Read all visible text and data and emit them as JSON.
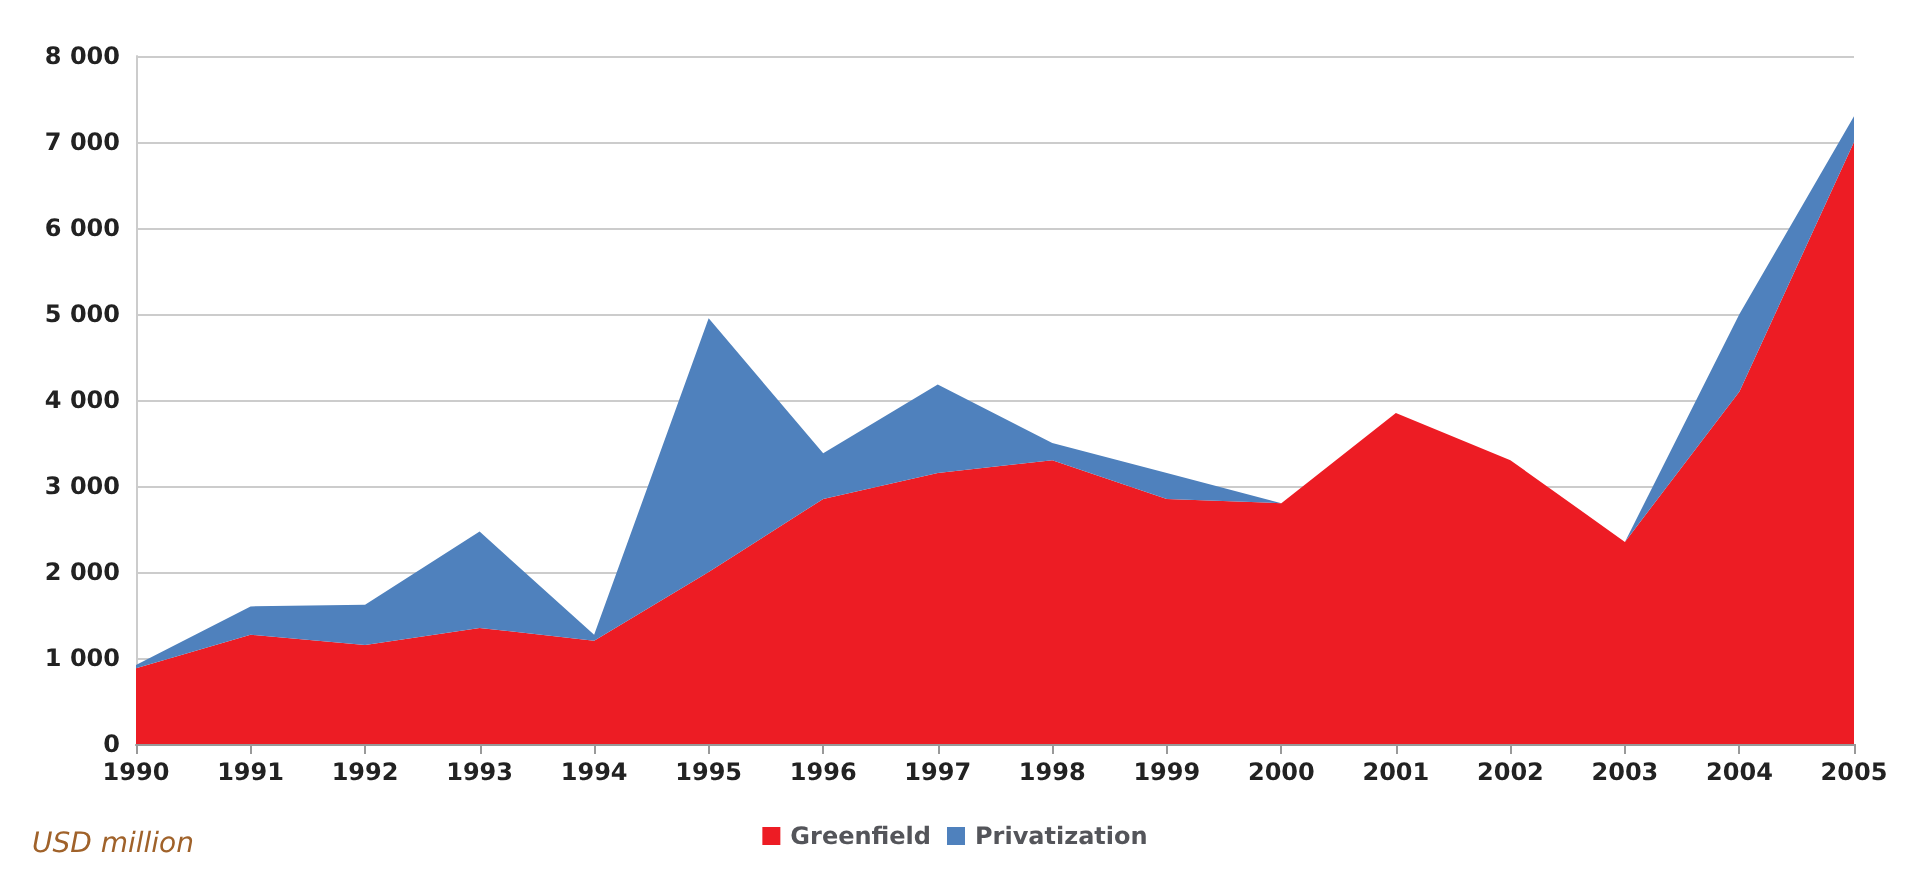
{
  "chart_data": {
    "type": "area",
    "stacked": true,
    "ylabel": "USD million",
    "categories": [
      "1990",
      "1991",
      "1992",
      "1993",
      "1994",
      "1995",
      "1996",
      "1997",
      "1998",
      "1999",
      "2000",
      "2001",
      "2002",
      "2003",
      "2004",
      "2005"
    ],
    "series": [
      {
        "name": "Greenfield",
        "color": "#ed1c24",
        "values": [
          880,
          1270,
          1150,
          1350,
          1200,
          2000,
          2850,
          3150,
          3300,
          2850,
          2800,
          3850,
          3300,
          2350,
          4100,
          7000
        ]
      },
      {
        "name": "Privatization",
        "color": "#4f81bd",
        "values": [
          40,
          330,
          470,
          1120,
          70,
          2950,
          530,
          1030,
          200,
          300,
          0,
          0,
          0,
          0,
          900,
          300
        ]
      }
    ],
    "ylim": [
      0,
      8000
    ],
    "yticks": [
      0,
      {
        "value": 1000,
        "label": "1 000"
      },
      {
        "value": 2000,
        "label": "2 000"
      },
      {
        "value": 3000,
        "label": "3 000"
      },
      {
        "value": 4000,
        "label": "4 000"
      },
      {
        "value": 5000,
        "label": "5 000"
      },
      {
        "value": 6000,
        "label": "6 000"
      },
      {
        "value": 7000,
        "label": "7 000"
      },
      {
        "value": 8000,
        "label": "8 000"
      }
    ],
    "grid": "y",
    "legend": "bottom"
  }
}
